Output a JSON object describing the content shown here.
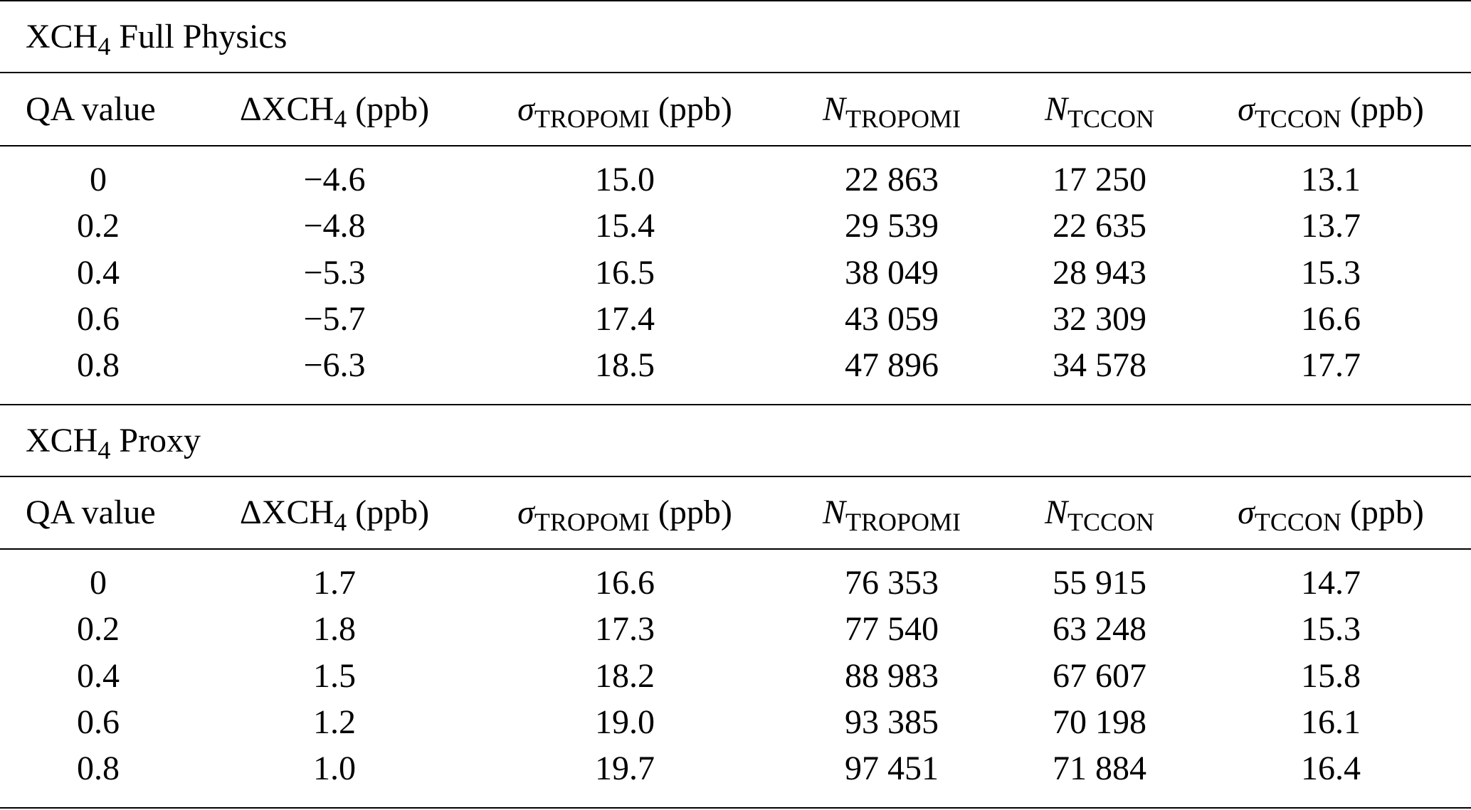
{
  "sections": [
    {
      "title_main": "XCH",
      "title_sub": "4",
      "title_rest": " Full Physics",
      "headers": {
        "qa": "QA value",
        "delta_pre": "ΔXCH",
        "delta_sub": "4",
        "delta_post": " (ppb)",
        "sigma_trop_sym": "σ",
        "sigma_trop_sub": "TROPOMI",
        "sigma_trop_post": " (ppb)",
        "n_trop_sym": "N",
        "n_trop_sub": "TROPOMI",
        "n_tccon_sym": "N",
        "n_tccon_sub": "TCCON",
        "sigma_tccon_sym": "σ",
        "sigma_tccon_sub": "TCCON",
        "sigma_tccon_post": " (ppb)"
      },
      "rows": [
        [
          "0",
          "−4.6",
          "15.0",
          "22 863",
          "17 250",
          "13.1"
        ],
        [
          "0.2",
          "−4.8",
          "15.4",
          "29 539",
          "22 635",
          "13.7"
        ],
        [
          "0.4",
          "−5.3",
          "16.5",
          "38 049",
          "28 943",
          "15.3"
        ],
        [
          "0.6",
          "−5.7",
          "17.4",
          "43 059",
          "32 309",
          "16.6"
        ],
        [
          "0.8",
          "−6.3",
          "18.5",
          "47 896",
          "34 578",
          "17.7"
        ]
      ]
    },
    {
      "title_main": "XCH",
      "title_sub": "4",
      "title_rest": " Proxy",
      "headers": {
        "qa": "QA value",
        "delta_pre": "ΔXCH",
        "delta_sub": "4",
        "delta_post": " (ppb)",
        "sigma_trop_sym": "σ",
        "sigma_trop_sub": "TROPOMI",
        "sigma_trop_post": " (ppb)",
        "n_trop_sym": "N",
        "n_trop_sub": "TROPOMI",
        "n_tccon_sym": "N",
        "n_tccon_sub": "TCCON",
        "sigma_tccon_sym": "σ",
        "sigma_tccon_sub": "TCCON",
        "sigma_tccon_post": " (ppb)"
      },
      "rows": [
        [
          "0",
          "1.7",
          "16.6",
          "76 353",
          "55 915",
          "14.7"
        ],
        [
          "0.2",
          "1.8",
          "17.3",
          "77 540",
          "63 248",
          "15.3"
        ],
        [
          "0.4",
          "1.5",
          "18.2",
          "88 983",
          "67 607",
          "15.8"
        ],
        [
          "0.6",
          "1.2",
          "19.0",
          "93 385",
          "70 198",
          "16.1"
        ],
        [
          "0.8",
          "1.0",
          "19.7",
          "97 451",
          "71 884",
          "16.4"
        ]
      ]
    }
  ]
}
